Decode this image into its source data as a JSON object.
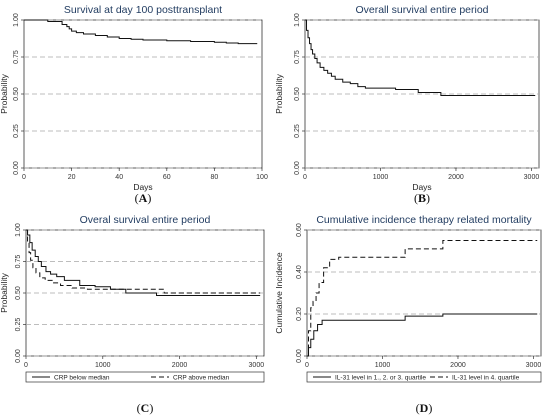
{
  "chart_data": [
    {
      "id": "A",
      "type": "line",
      "title": "Survival at day 100 posttransplant",
      "xlabel": "Days",
      "ylabel": "Probability",
      "xlim": [
        0,
        100
      ],
      "ylim": [
        0,
        1
      ],
      "xticks": [
        "0",
        "20",
        "40",
        "60",
        "80",
        "100"
      ],
      "xtick_values": [
        0,
        20,
        40,
        60,
        80,
        100
      ],
      "yticks": [
        "0.00",
        "0.25",
        "0.50",
        "0.75",
        "1.00"
      ],
      "ytick_values": [
        0,
        0.25,
        0.5,
        0.75,
        1
      ],
      "grid": "horizontal dashed",
      "caption": "A",
      "legend": [],
      "series": [
        {
          "style": "solid",
          "x": [
            0,
            10,
            16,
            18,
            19,
            20,
            22,
            25,
            30,
            35,
            40,
            45,
            50,
            60,
            70,
            80,
            85,
            90,
            98
          ],
          "y": [
            1,
            0.99,
            0.97,
            0.955,
            0.94,
            0.925,
            0.915,
            0.905,
            0.895,
            0.885,
            0.875,
            0.87,
            0.865,
            0.86,
            0.855,
            0.85,
            0.845,
            0.84,
            0.84
          ]
        }
      ]
    },
    {
      "id": "B",
      "type": "line",
      "title": "Overall survival entire period",
      "xlabel": "Days",
      "ylabel": "Probability",
      "xlim": [
        0,
        3100
      ],
      "ylim": [
        0,
        1
      ],
      "xticks": [
        "0",
        "1000",
        "2000",
        "3000"
      ],
      "xtick_values": [
        0,
        1000,
        2000,
        3000
      ],
      "yticks": [
        "0.00",
        "0.25",
        "0.50",
        "0.75",
        "1.00"
      ],
      "ytick_values": [
        0,
        0.25,
        0.5,
        0.75,
        1
      ],
      "grid": "horizontal dashed",
      "caption": "B",
      "legend": [],
      "series": [
        {
          "style": "solid",
          "x": [
            0,
            20,
            40,
            60,
            80,
            100,
            130,
            160,
            200,
            250,
            300,
            350,
            400,
            500,
            600,
            700,
            800,
            1000,
            1200,
            1500,
            1800,
            2200,
            2600,
            3050
          ],
          "y": [
            1,
            0.93,
            0.88,
            0.84,
            0.8,
            0.77,
            0.74,
            0.71,
            0.68,
            0.66,
            0.64,
            0.62,
            0.6,
            0.58,
            0.57,
            0.55,
            0.54,
            0.54,
            0.53,
            0.51,
            0.49,
            0.49,
            0.49,
            0.49
          ]
        }
      ]
    },
    {
      "id": "C",
      "type": "line",
      "title": "Overal survival entire period",
      "xlabel": "Days",
      "ylabel": "Probability",
      "xlim": [
        0,
        3100
      ],
      "ylim": [
        0,
        1
      ],
      "xticks": [
        "0",
        "1000",
        "2000",
        "3000"
      ],
      "xtick_values": [
        0,
        1000,
        2000,
        3000
      ],
      "yticks": [
        "0.00",
        "0.25",
        "0.50",
        "0.75",
        "1.00"
      ],
      "ytick_values": [
        0,
        0.25,
        0.5,
        0.75,
        1
      ],
      "grid": "horizontal dashed",
      "caption": "C",
      "legend": [
        "CRP below median",
        "CRP above median"
      ],
      "legend_placement": "bottom",
      "series": [
        {
          "name": "CRP below median",
          "style": "solid",
          "x": [
            0,
            20,
            50,
            80,
            120,
            160,
            200,
            260,
            320,
            400,
            500,
            700,
            900,
            1100,
            1300,
            1700,
            2200,
            3050
          ],
          "y": [
            1,
            0.96,
            0.9,
            0.84,
            0.79,
            0.75,
            0.71,
            0.67,
            0.65,
            0.63,
            0.6,
            0.56,
            0.55,
            0.53,
            0.5,
            0.48,
            0.48,
            0.48
          ]
        },
        {
          "name": "CRP above median",
          "style": "dashed",
          "x": [
            0,
            20,
            40,
            60,
            90,
            130,
            180,
            250,
            350,
            450,
            600,
            800,
            1200,
            1700,
            1800,
            3050
          ],
          "y": [
            1,
            0.9,
            0.82,
            0.76,
            0.7,
            0.66,
            0.62,
            0.6,
            0.58,
            0.56,
            0.54,
            0.53,
            0.53,
            0.53,
            0.5,
            0.5
          ]
        }
      ]
    },
    {
      "id": "D",
      "type": "line",
      "title": "Cumulative incidence therapy related mortality",
      "xlabel": "Days",
      "ylabel": "Cumulative Incidence",
      "xlim": [
        0,
        3100
      ],
      "ylim": [
        0,
        0.6
      ],
      "xticks": [
        "0",
        "1000",
        "2000",
        "3000"
      ],
      "xtick_values": [
        0,
        1000,
        2000,
        3000
      ],
      "yticks": [
        "0.00",
        "0.20",
        "0.40",
        "0.60"
      ],
      "ytick_values": [
        0,
        0.2,
        0.4,
        0.6
      ],
      "grid": "horizontal dashed",
      "caption": "D",
      "legend": [
        "IL-31 level in 1., 2. or 3. quartile",
        "IL-31 level in 4. quartile"
      ],
      "legend_placement": "bottom",
      "series": [
        {
          "name": "IL-31 level in 1., 2. or 3. quartile",
          "style": "solid",
          "x": [
            0,
            20,
            50,
            90,
            140,
            200,
            300,
            1300,
            1800,
            3050
          ],
          "y": [
            0,
            0.04,
            0.08,
            0.12,
            0.15,
            0.17,
            0.17,
            0.19,
            0.2,
            0.2
          ]
        },
        {
          "name": "IL-31 level in 4. quartile",
          "style": "dashed",
          "x": [
            0,
            20,
            50,
            80,
            120,
            160,
            220,
            300,
            420,
            1300,
            1800,
            3050
          ],
          "y": [
            0,
            0.12,
            0.23,
            0.26,
            0.3,
            0.35,
            0.42,
            0.46,
            0.47,
            0.51,
            0.55,
            0.55
          ]
        }
      ]
    }
  ]
}
